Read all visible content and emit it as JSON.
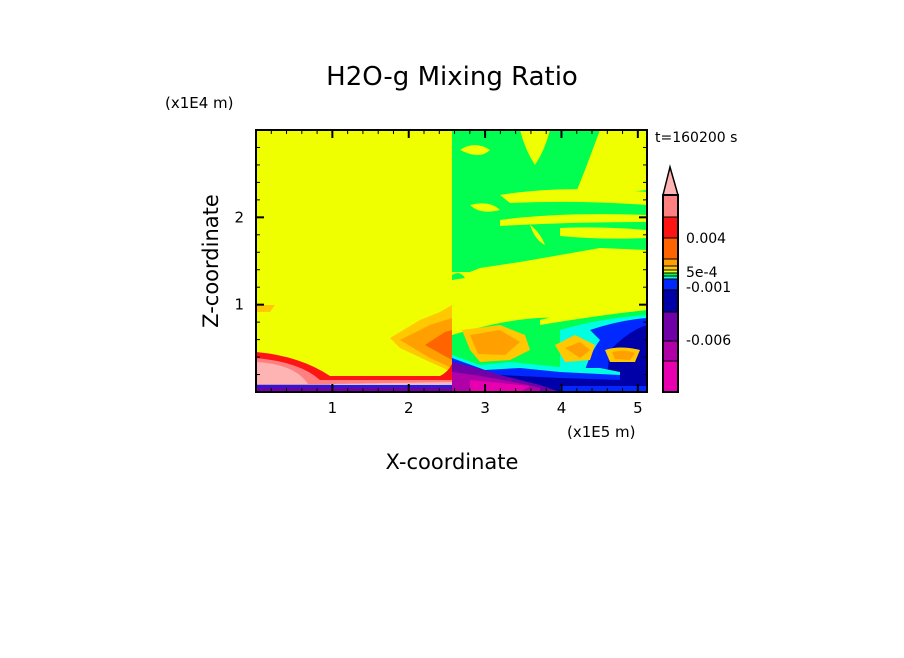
{
  "chart_data": {
    "type": "heatmap",
    "title": "H2O-g Mixing Ratio",
    "xlabel": "X-coordinate",
    "ylabel": "Z-coordinate",
    "x_unit": "(x1E5 m)",
    "y_unit": "(x1E4 m)",
    "time_label": "t=160200 s",
    "xlim": [
      0,
      5.12
    ],
    "ylim": [
      0,
      3.0
    ],
    "x_ticks": [
      "1",
      "2",
      "3",
      "4",
      "5"
    ],
    "y_ticks": [
      "1",
      "2"
    ],
    "colorbar": {
      "labels": [
        "0.004",
        "5e-4",
        "-0.001",
        "-0.006"
      ],
      "extend": "max",
      "colors": [
        "#ffb4b4",
        "#ff8080",
        "#ff1414",
        "#ff6400",
        "#ffa000",
        "#ffc800",
        "#f0ff00",
        "#00ff50",
        "#00ffe0",
        "#0028ff",
        "#0000a8",
        "#7000a8",
        "#b000a8",
        "#e800b0"
      ]
    }
  }
}
